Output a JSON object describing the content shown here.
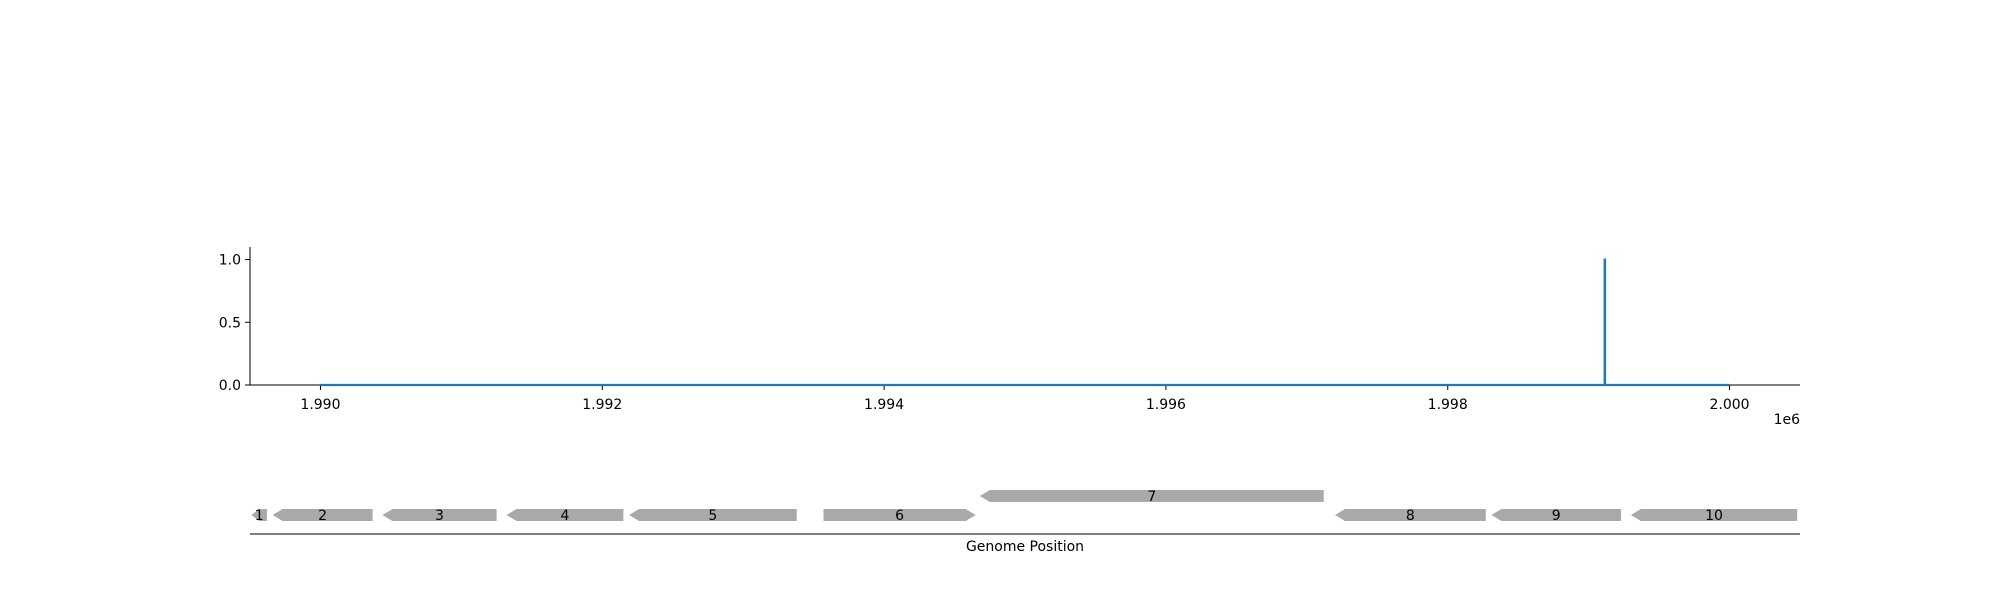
{
  "chart_data": [
    {
      "type": "line",
      "x_range": [
        1989500,
        2000500
      ],
      "ylim": [
        0,
        1.1
      ],
      "x_ticks": [
        1990000,
        1992000,
        1994000,
        1996000,
        1998000,
        2000000
      ],
      "x_tick_labels": [
        "1.990",
        "1.992",
        "1.994",
        "1.996",
        "1.998",
        "2.000"
      ],
      "x_offset_label": "1e6",
      "y_ticks": [
        0.0,
        0.5,
        1.0
      ],
      "y_tick_labels": [
        "0.0",
        "0.5",
        "1.0"
      ],
      "grid": false,
      "line_color": "#1f77b4",
      "series": [
        {
          "x": [
            1990000,
            1999114,
            1999114,
            1999116,
            1999116,
            2000000
          ],
          "values": [
            0,
            0,
            1,
            1,
            0,
            0
          ]
        }
      ]
    },
    {
      "type": "gene-track",
      "xlabel": "Genome Position",
      "gene_color": "#a9a9a9",
      "genes": [
        {
          "label": "1",
          "start": 1989510,
          "end": 1989620,
          "strand": "-",
          "row": 0
        },
        {
          "label": "2",
          "start": 1989660,
          "end": 1990370,
          "strand": "-",
          "row": 0
        },
        {
          "label": "3",
          "start": 1990440,
          "end": 1991250,
          "strand": "-",
          "row": 0
        },
        {
          "label": "4",
          "start": 1991320,
          "end": 1992150,
          "strand": "-",
          "row": 0
        },
        {
          "label": "5",
          "start": 1992190,
          "end": 1993380,
          "strand": "-",
          "row": 0
        },
        {
          "label": "6",
          "start": 1993570,
          "end": 1994650,
          "strand": "+",
          "row": 0
        },
        {
          "label": "7",
          "start": 1994680,
          "end": 1997120,
          "strand": "-",
          "row": 1
        },
        {
          "label": "8",
          "start": 1997200,
          "end": 1998270,
          "strand": "-",
          "row": 0
        },
        {
          "label": "9",
          "start": 1998310,
          "end": 1999230,
          "strand": "-",
          "row": 0
        },
        {
          "label": "10",
          "start": 1999300,
          "end": 2000480,
          "strand": "-",
          "row": 0
        }
      ]
    }
  ]
}
